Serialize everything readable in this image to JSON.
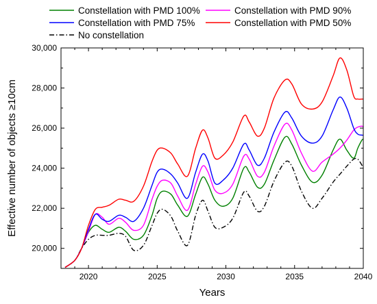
{
  "chart_data": {
    "type": "line",
    "xlabel": "Years",
    "ylabel": "Effective number of objects ≥10cm",
    "xlim": [
      2018,
      2040
    ],
    "ylim": [
      19000,
      30000
    ],
    "x_ticks": [
      2020,
      2025,
      2030,
      2035,
      2040
    ],
    "x_tick_labels": [
      "2020",
      "2025",
      "2030",
      "2035",
      "2040"
    ],
    "y_ticks": [
      20000,
      22000,
      24000,
      26000,
      28000,
      30000
    ],
    "y_tick_labels": [
      "20,000",
      "22,000",
      "24,000",
      "26,000",
      "28,000",
      "30,000"
    ],
    "legend_position": "top",
    "series": [
      {
        "name": "Constellation with PMD 100%",
        "color": "#008000",
        "dash": "solid",
        "points": [
          [
            2018.3,
            19050
          ],
          [
            2019,
            19400
          ],
          [
            2019.5,
            20000
          ],
          [
            2020,
            20800
          ],
          [
            2020.5,
            21150
          ],
          [
            2021,
            20950
          ],
          [
            2021.5,
            20800
          ],
          [
            2022.2,
            21050
          ],
          [
            2022.7,
            20850
          ],
          [
            2023.3,
            20450
          ],
          [
            2024,
            20650
          ],
          [
            2024.6,
            21600
          ],
          [
            2025,
            22500
          ],
          [
            2025.4,
            22850
          ],
          [
            2026,
            22700
          ],
          [
            2026.5,
            22150
          ],
          [
            2027.2,
            21600
          ],
          [
            2027.8,
            22700
          ],
          [
            2028.3,
            23550
          ],
          [
            2028.7,
            23200
          ],
          [
            2029.2,
            22400
          ],
          [
            2029.8,
            22100
          ],
          [
            2030.5,
            22500
          ],
          [
            2031.3,
            24000
          ],
          [
            2031.7,
            23800
          ],
          [
            2032.3,
            23050
          ],
          [
            2032.8,
            23200
          ],
          [
            2033.5,
            24400
          ],
          [
            2034.3,
            25550
          ],
          [
            2034.8,
            25200
          ],
          [
            2035.5,
            24150
          ],
          [
            2036.3,
            23300
          ],
          [
            2037,
            23650
          ],
          [
            2037.8,
            24900
          ],
          [
            2038.3,
            25450
          ],
          [
            2038.8,
            24900
          ],
          [
            2039.3,
            24500
          ],
          [
            2039.6,
            25000
          ],
          [
            2039.9,
            25400
          ],
          [
            2040,
            25450
          ]
        ]
      },
      {
        "name": "Constellation with PMD 90%",
        "color": "#ff00ff",
        "dash": "solid",
        "points": [
          [
            2018.3,
            19050
          ],
          [
            2019,
            19400
          ],
          [
            2019.5,
            20000
          ],
          [
            2020,
            20850
          ],
          [
            2020.5,
            21700
          ],
          [
            2021,
            21550
          ],
          [
            2021.5,
            21200
          ],
          [
            2022.2,
            21500
          ],
          [
            2022.7,
            21300
          ],
          [
            2023.3,
            20900
          ],
          [
            2024,
            21150
          ],
          [
            2024.6,
            22400
          ],
          [
            2025,
            23100
          ],
          [
            2025.4,
            23400
          ],
          [
            2026,
            23250
          ],
          [
            2026.5,
            22600
          ],
          [
            2027.2,
            21900
          ],
          [
            2027.8,
            23200
          ],
          [
            2028.3,
            24100
          ],
          [
            2028.7,
            23800
          ],
          [
            2029.2,
            22900
          ],
          [
            2029.8,
            22750
          ],
          [
            2030.5,
            23200
          ],
          [
            2031.3,
            24600
          ],
          [
            2031.7,
            24450
          ],
          [
            2032.3,
            23600
          ],
          [
            2032.8,
            23800
          ],
          [
            2033.5,
            25100
          ],
          [
            2034.3,
            26200
          ],
          [
            2034.8,
            25900
          ],
          [
            2035.5,
            24750
          ],
          [
            2036.3,
            23850
          ],
          [
            2037,
            24300
          ],
          [
            2037.8,
            24700
          ],
          [
            2038.3,
            25000
          ],
          [
            2038.8,
            25400
          ],
          [
            2039.3,
            25900
          ],
          [
            2039.6,
            26050
          ],
          [
            2039.9,
            26100
          ],
          [
            2040,
            26050
          ]
        ]
      },
      {
        "name": "Constellation with PMD 75%",
        "color": "#0000ff",
        "dash": "solid",
        "points": [
          [
            2018.3,
            19050
          ],
          [
            2019,
            19400
          ],
          [
            2019.5,
            20000
          ],
          [
            2020,
            20950
          ],
          [
            2020.5,
            21700
          ],
          [
            2021,
            21450
          ],
          [
            2021.5,
            21350
          ],
          [
            2022.2,
            21650
          ],
          [
            2022.7,
            21550
          ],
          [
            2023.3,
            21350
          ],
          [
            2024,
            22000
          ],
          [
            2024.6,
            23100
          ],
          [
            2025,
            23800
          ],
          [
            2025.4,
            23950
          ],
          [
            2026,
            23700
          ],
          [
            2026.5,
            23250
          ],
          [
            2027.2,
            22500
          ],
          [
            2027.8,
            23800
          ],
          [
            2028.3,
            24700
          ],
          [
            2028.7,
            24350
          ],
          [
            2029.2,
            23250
          ],
          [
            2029.8,
            23400
          ],
          [
            2030.5,
            24000
          ],
          [
            2031.3,
            25200
          ],
          [
            2031.7,
            24900
          ],
          [
            2032.3,
            24150
          ],
          [
            2032.8,
            24500
          ],
          [
            2033.5,
            25800
          ],
          [
            2034.3,
            26800
          ],
          [
            2034.8,
            26500
          ],
          [
            2035.5,
            25600
          ],
          [
            2036.3,
            25250
          ],
          [
            2037,
            25600
          ],
          [
            2037.8,
            26900
          ],
          [
            2038.3,
            27550
          ],
          [
            2038.8,
            27000
          ],
          [
            2039.3,
            26000
          ],
          [
            2039.6,
            25700
          ],
          [
            2039.9,
            25650
          ],
          [
            2040,
            25650
          ]
        ]
      },
      {
        "name": "Constellation with PMD 50%",
        "color": "#ff0000",
        "dash": "solid",
        "points": [
          [
            2018.3,
            19050
          ],
          [
            2019,
            19400
          ],
          [
            2019.5,
            20000
          ],
          [
            2020,
            21150
          ],
          [
            2020.5,
            21950
          ],
          [
            2021,
            22050
          ],
          [
            2021.5,
            22150
          ],
          [
            2022.2,
            22450
          ],
          [
            2022.7,
            22400
          ],
          [
            2023.3,
            22350
          ],
          [
            2024,
            23100
          ],
          [
            2024.6,
            24300
          ],
          [
            2025,
            24900
          ],
          [
            2025.4,
            25000
          ],
          [
            2026,
            24750
          ],
          [
            2026.5,
            24200
          ],
          [
            2027.2,
            23600
          ],
          [
            2027.8,
            25000
          ],
          [
            2028.3,
            25900
          ],
          [
            2028.7,
            25500
          ],
          [
            2029.2,
            24500
          ],
          [
            2029.8,
            24650
          ],
          [
            2030.5,
            25300
          ],
          [
            2031.3,
            26600
          ],
          [
            2031.7,
            26300
          ],
          [
            2032.3,
            25600
          ],
          [
            2032.8,
            26000
          ],
          [
            2033.5,
            27500
          ],
          [
            2034.3,
            28400
          ],
          [
            2034.8,
            28200
          ],
          [
            2035.5,
            27200
          ],
          [
            2036.3,
            26950
          ],
          [
            2037,
            27300
          ],
          [
            2037.8,
            28600
          ],
          [
            2038.3,
            29500
          ],
          [
            2038.8,
            28900
          ],
          [
            2039.3,
            27600
          ],
          [
            2039.6,
            27450
          ],
          [
            2039.9,
            27450
          ],
          [
            2040,
            27450
          ]
        ]
      },
      {
        "name": "No constellation",
        "color": "#000000",
        "dash": "dashdot",
        "points": [
          [
            2018.3,
            19050
          ],
          [
            2019,
            19400
          ],
          [
            2019.5,
            20000
          ],
          [
            2020,
            20450
          ],
          [
            2020.5,
            20650
          ],
          [
            2021,
            20650
          ],
          [
            2021.5,
            20650
          ],
          [
            2022.2,
            20750
          ],
          [
            2022.7,
            20600
          ],
          [
            2023.3,
            19900
          ],
          [
            2024,
            20150
          ],
          [
            2024.6,
            21100
          ],
          [
            2025,
            21750
          ],
          [
            2025.4,
            21950
          ],
          [
            2026,
            21600
          ],
          [
            2026.5,
            20850
          ],
          [
            2027.2,
            20150
          ],
          [
            2027.8,
            21650
          ],
          [
            2028.3,
            22400
          ],
          [
            2028.7,
            21850
          ],
          [
            2029.2,
            21050
          ],
          [
            2029.8,
            21050
          ],
          [
            2030.5,
            21500
          ],
          [
            2031.3,
            22800
          ],
          [
            2031.7,
            22600
          ],
          [
            2032.3,
            21850
          ],
          [
            2032.8,
            22100
          ],
          [
            2033.5,
            23350
          ],
          [
            2034.3,
            24300
          ],
          [
            2034.8,
            24100
          ],
          [
            2035.5,
            22850
          ],
          [
            2036.3,
            22000
          ],
          [
            2037,
            22500
          ],
          [
            2037.8,
            23300
          ],
          [
            2038.3,
            23700
          ],
          [
            2038.8,
            24100
          ],
          [
            2039.3,
            24450
          ],
          [
            2039.6,
            24450
          ],
          [
            2039.9,
            24150
          ],
          [
            2040,
            24000
          ]
        ]
      }
    ]
  }
}
